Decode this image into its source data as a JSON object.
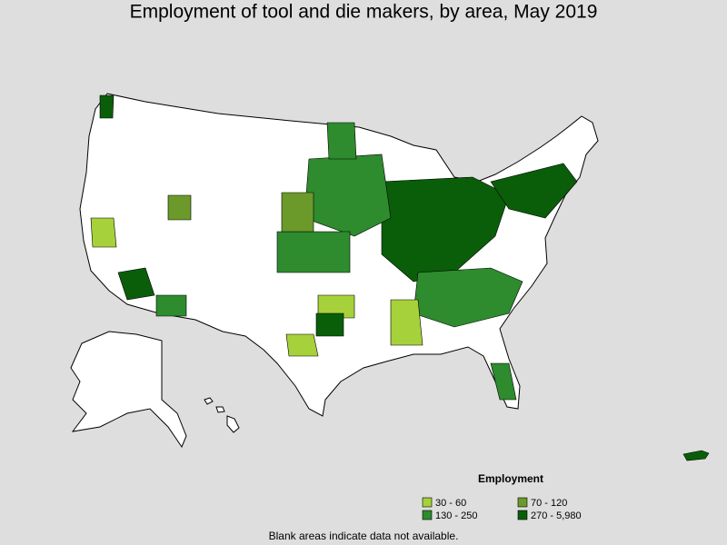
{
  "header": {
    "title": "Employment of tool and die makers, by area, May 2019"
  },
  "legend": {
    "title": "Employment",
    "items": [
      {
        "label": "30 - 60",
        "color": "#a6d13a"
      },
      {
        "label": "70 - 120",
        "color": "#6b9a2a"
      },
      {
        "label": "130 - 250",
        "color": "#2e8b2e"
      },
      {
        "label": "270 - 5,980",
        "color": "#0a5e0a"
      }
    ]
  },
  "footnote": "Blank areas indicate data not available."
}
